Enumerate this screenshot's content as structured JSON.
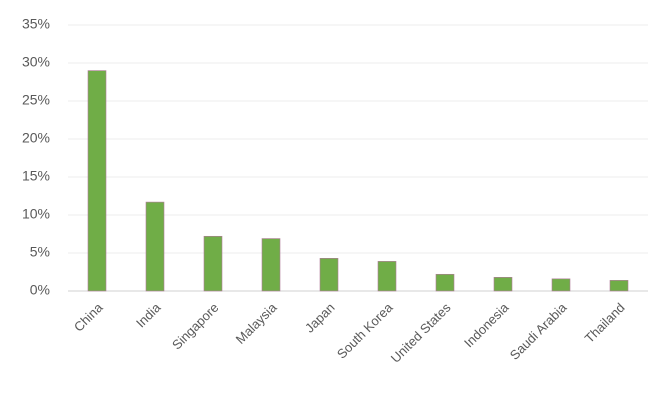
{
  "chart_data": {
    "type": "bar",
    "categories": [
      "China",
      "India",
      "Singapore",
      "Malaysia",
      "Japan",
      "South Korea",
      "United States",
      "Indonesia",
      "Saudi Arabia",
      "Thailand"
    ],
    "values": [
      29,
      11.7,
      7.2,
      6.9,
      4.3,
      3.9,
      2.2,
      1.8,
      1.6,
      1.4
    ],
    "color": "#70ad47",
    "ylim": [
      0,
      35
    ],
    "yticks": [
      {
        "value": 0,
        "label": "0%"
      },
      {
        "value": 5,
        "label": "5%"
      },
      {
        "value": 10,
        "label": "10%"
      },
      {
        "value": 15,
        "label": "15%"
      },
      {
        "value": 20,
        "label": "20%"
      },
      {
        "value": 25,
        "label": "25%"
      },
      {
        "value": 30,
        "label": "30%"
      },
      {
        "value": 35,
        "label": "35%"
      }
    ],
    "grid": true
  }
}
